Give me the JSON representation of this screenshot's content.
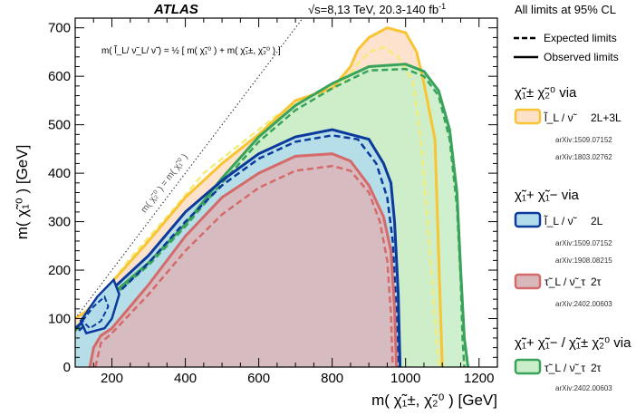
{
  "chart_data": {
    "type": "area",
    "header": {
      "experiment": "ATLAS",
      "energy": "√s=8,13 TeV, 20.3-140 fb",
      "energy_sup": "-1"
    },
    "xlabel": "m( χ̃₁±, χ̃₂⁰ ) [GeV]",
    "ylabel": "m( χ̃₁⁰ ) [GeV]",
    "xlim": [
      100,
      1250
    ],
    "ylim": [
      0,
      720
    ],
    "xticks": [
      200,
      400,
      600,
      800,
      1000,
      1200
    ],
    "yticks": [
      0,
      100,
      200,
      300,
      400,
      500,
      600,
      700
    ],
    "xtick_labels": [
      "200",
      "400",
      "600",
      "800",
      "1000",
      "1200"
    ],
    "ytick_labels": [
      "0",
      "100",
      "200",
      "300",
      "400",
      "500",
      "600",
      "700"
    ],
    "annotations": {
      "mass_relation": "m( l̃_L/ ν̃_L/ ν̃ ) = ½ [ m( χ̃₁⁰ ) + m( χ̃₁±, χ̃₂⁰ ) ]",
      "diagonal": "m( χ̃₂⁰ ) = m( χ̃₁⁰ )"
    },
    "legend": {
      "placement": "right",
      "header": "All limits at 95% CL",
      "expected": "Expected limits",
      "observed": "Observed limits",
      "groups": [
        {
          "title": "χ̃₁± χ̃₂⁰  via",
          "entries": [
            {
              "key": "l3",
              "label": "l̃_L / ν̃",
              "channel": "2L+3L",
              "refs": [
                "arXiv:1509.07152",
                "arXiv:1803.02762"
              ]
            }
          ]
        },
        {
          "title": "χ̃₁+ χ̃₁−  via",
          "entries": [
            {
              "key": "l2",
              "label": "l̃_L / ν̃",
              "channel": "2L",
              "refs": [
                "arXiv:1509.07152",
                "arXiv:1908.08215"
              ]
            },
            {
              "key": "tau",
              "label": "τ̃_L / ν̃_τ",
              "channel": "2τ",
              "refs": [
                "arXiv:2402.00603"
              ]
            }
          ]
        },
        {
          "title": "χ̃₁+ χ̃₁− / χ̃₁± χ̃₂⁰  via",
          "entries": [
            {
              "key": "mix",
              "label": "τ̃_L / ν̃_τ",
              "channel": "2τ",
              "refs": [
                "arXiv:2402.00603"
              ]
            }
          ]
        }
      ]
    },
    "colors": {
      "l3_fill": "#fde0c8",
      "l3_line": "#f9c433",
      "l3_dash": "#f3ec79",
      "mix_fill": "#c9eec9",
      "mix_line": "#3aa35a",
      "l2_fill": "#b3dceb",
      "l2_line": "#0c3a9c",
      "tau_fill": "#d9b8bb",
      "tau_line": "#d56a6a"
    },
    "series": [
      {
        "key": "l3",
        "observed": [
          [
            100,
            100
          ],
          [
            130,
            115
          ],
          [
            200,
            175
          ],
          [
            300,
            260
          ],
          [
            400,
            350
          ],
          [
            500,
            420
          ],
          [
            600,
            480
          ],
          [
            700,
            550
          ],
          [
            800,
            575
          ],
          [
            850,
            620
          ],
          [
            870,
            655
          ],
          [
            900,
            680
          ],
          [
            950,
            700
          ],
          [
            1000,
            690
          ],
          [
            1030,
            650
          ],
          [
            1050,
            585
          ],
          [
            1080,
            470
          ],
          [
            1100,
            0
          ]
        ],
        "expected": [
          [
            170,
            145
          ],
          [
            250,
            225
          ],
          [
            350,
            310
          ],
          [
            450,
            400
          ],
          [
            550,
            460
          ],
          [
            650,
            520
          ],
          [
            750,
            565
          ],
          [
            830,
            590
          ],
          [
            870,
            625
          ],
          [
            900,
            650
          ],
          [
            940,
            660
          ],
          [
            980,
            640
          ],
          [
            1020,
            590
          ],
          [
            1040,
            480
          ],
          [
            1060,
            300
          ],
          [
            1080,
            100
          ],
          [
            1090,
            0
          ]
        ]
      },
      {
        "key": "mix",
        "observed": [
          [
            100,
            80
          ],
          [
            200,
            150
          ],
          [
            300,
            215
          ],
          [
            400,
            295
          ],
          [
            500,
            390
          ],
          [
            600,
            475
          ],
          [
            700,
            540
          ],
          [
            800,
            585
          ],
          [
            900,
            620
          ],
          [
            1000,
            625
          ],
          [
            1050,
            610
          ],
          [
            1090,
            570
          ],
          [
            1120,
            490
          ],
          [
            1140,
            360
          ],
          [
            1150,
            200
          ],
          [
            1160,
            60
          ],
          [
            1170,
            0
          ]
        ],
        "expected": [
          [
            100,
            75
          ],
          [
            200,
            145
          ],
          [
            300,
            210
          ],
          [
            400,
            290
          ],
          [
            500,
            380
          ],
          [
            600,
            465
          ],
          [
            700,
            530
          ],
          [
            800,
            575
          ],
          [
            900,
            612
          ],
          [
            1000,
            615
          ],
          [
            1050,
            600
          ],
          [
            1090,
            560
          ],
          [
            1120,
            470
          ],
          [
            1140,
            330
          ],
          [
            1150,
            180
          ],
          [
            1155,
            60
          ],
          [
            1160,
            0
          ]
        ]
      },
      {
        "key": "l2",
        "observed": [
          [
            100,
            80
          ],
          [
            150,
            110
          ],
          [
            200,
            160
          ],
          [
            300,
            230
          ],
          [
            400,
            320
          ],
          [
            500,
            385
          ],
          [
            600,
            440
          ],
          [
            700,
            475
          ],
          [
            800,
            490
          ],
          [
            900,
            470
          ],
          [
            940,
            420
          ],
          [
            960,
            380
          ],
          [
            970,
            300
          ],
          [
            980,
            150
          ],
          [
            985,
            0
          ]
        ],
        "expected": [
          [
            110,
            75
          ],
          [
            200,
            140
          ],
          [
            300,
            215
          ],
          [
            400,
            300
          ],
          [
            500,
            375
          ],
          [
            600,
            430
          ],
          [
            700,
            465
          ],
          [
            800,
            478
          ],
          [
            870,
            470
          ],
          [
            920,
            420
          ],
          [
            950,
            350
          ],
          [
            965,
            260
          ],
          [
            975,
            120
          ],
          [
            980,
            0
          ]
        ]
      },
      {
        "key": "tau",
        "observed": [
          [
            140,
            0
          ],
          [
            150,
            40
          ],
          [
            170,
            65
          ],
          [
            200,
            80
          ],
          [
            300,
            170
          ],
          [
            400,
            270
          ],
          [
            500,
            350
          ],
          [
            600,
            400
          ],
          [
            700,
            435
          ],
          [
            800,
            440
          ],
          [
            850,
            425
          ],
          [
            900,
            375
          ],
          [
            940,
            310
          ],
          [
            960,
            240
          ],
          [
            970,
            120
          ],
          [
            975,
            0
          ]
        ],
        "expected": [
          [
            155,
            0
          ],
          [
            170,
            50
          ],
          [
            200,
            70
          ],
          [
            300,
            150
          ],
          [
            400,
            240
          ],
          [
            500,
            315
          ],
          [
            600,
            370
          ],
          [
            700,
            405
          ],
          [
            800,
            415
          ],
          [
            850,
            405
          ],
          [
            900,
            360
          ],
          [
            930,
            300
          ],
          [
            950,
            220
          ],
          [
            960,
            110
          ],
          [
            965,
            0
          ]
        ]
      }
    ],
    "low_mass_islands": {
      "l2_observed": [
        [
          115,
          95
        ],
        [
          160,
          145
        ],
        [
          205,
          180
        ],
        [
          220,
          150
        ],
        [
          200,
          100
        ],
        [
          180,
          80
        ],
        [
          130,
          70
        ]
      ],
      "l2_expected": [
        [
          120,
          95
        ],
        [
          150,
          125
        ],
        [
          180,
          145
        ],
        [
          190,
          125
        ],
        [
          170,
          95
        ],
        [
          140,
          80
        ]
      ]
    }
  }
}
